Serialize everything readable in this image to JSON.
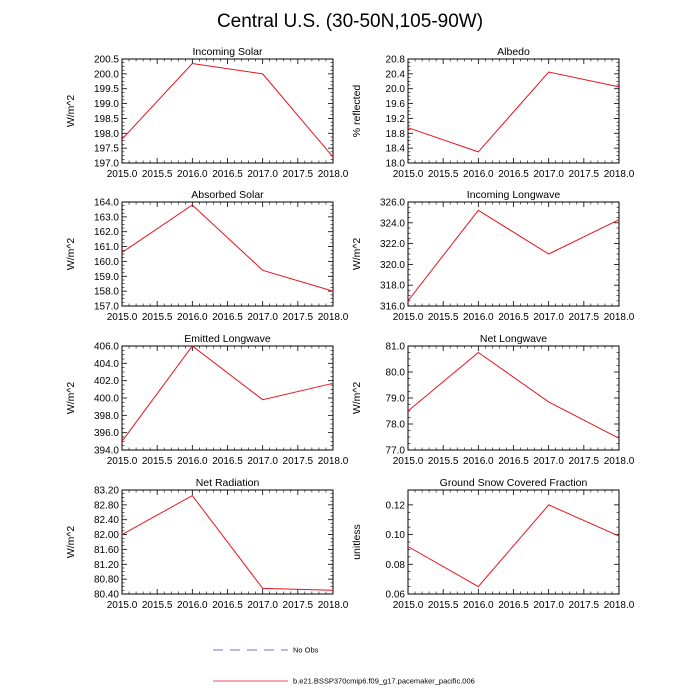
{
  "title": "Central U.S. (30-50N,105-90W)",
  "colors": {
    "model": "#e8141e",
    "obs": "#4a4aa8",
    "axis": "#000000"
  },
  "legend": {
    "obs_label": "No Obs",
    "model_label": "b.e21.BSSP370cmip6.f09_g17.pacemaker_pacific.006"
  },
  "chart_data": [
    {
      "type": "line",
      "title": "Incoming Solar",
      "ylabel": "W/m^2",
      "x": [
        2015.0,
        2016.0,
        2017.0,
        2018.0
      ],
      "y": [
        197.8,
        200.35,
        200.0,
        197.2
      ],
      "xlim": [
        2015.0,
        2018.0
      ],
      "ylim": [
        197.0,
        200.5
      ],
      "xticks": [
        2015.0,
        2015.5,
        2016.0,
        2016.5,
        2017.0,
        2017.5,
        2018.0
      ],
      "xtick_labels": [
        "2015.0",
        "2015.5",
        "2016.0",
        "2016.5",
        "2017.0",
        "2017.5",
        "2018.0"
      ],
      "yticks": [
        197.0,
        197.5,
        198.0,
        198.5,
        199.0,
        199.5,
        200.0,
        200.5
      ],
      "ytick_labels": [
        "197.0",
        "197.5",
        "198.0",
        "198.5",
        "199.0",
        "199.5",
        "200.0",
        "200.5"
      ]
    },
    {
      "type": "line",
      "title": "Albedo",
      "ylabel": "% reflected",
      "x": [
        2015.0,
        2016.0,
        2017.0,
        2018.0
      ],
      "y": [
        18.95,
        18.3,
        20.45,
        20.05
      ],
      "xlim": [
        2015.0,
        2018.0
      ],
      "ylim": [
        18.0,
        20.8
      ],
      "xticks": [
        2015.0,
        2015.5,
        2016.0,
        2016.5,
        2017.0,
        2017.5,
        2018.0
      ],
      "xtick_labels": [
        "2015.0",
        "2015.5",
        "2016.0",
        "2016.5",
        "2017.0",
        "2017.5",
        "2018.0"
      ],
      "yticks": [
        18.0,
        18.4,
        18.8,
        19.2,
        19.6,
        20.0,
        20.4,
        20.8
      ],
      "ytick_labels": [
        "18.0",
        "18.4",
        "18.8",
        "19.2",
        "19.6",
        "20.0",
        "20.4",
        "20.8"
      ]
    },
    {
      "type": "line",
      "title": "Absorbed Solar",
      "ylabel": "W/m^2",
      "x": [
        2015.0,
        2016.0,
        2017.0,
        2018.0
      ],
      "y": [
        160.6,
        163.8,
        159.4,
        158.0
      ],
      "xlim": [
        2015.0,
        2018.0
      ],
      "ylim": [
        157.0,
        164.0
      ],
      "xticks": [
        2015.0,
        2015.5,
        2016.0,
        2016.5,
        2017.0,
        2017.5,
        2018.0
      ],
      "xtick_labels": [
        "2015.0",
        "2015.5",
        "2016.0",
        "2016.5",
        "2017.0",
        "2017.5",
        "2018.0"
      ],
      "yticks": [
        157.0,
        158.0,
        159.0,
        160.0,
        161.0,
        162.0,
        163.0,
        164.0
      ],
      "ytick_labels": [
        "157.0",
        "158.0",
        "159.0",
        "160.0",
        "161.0",
        "162.0",
        "163.0",
        "164.0"
      ]
    },
    {
      "type": "line",
      "title": "Incoming Longwave",
      "ylabel": "W/m^2",
      "x": [
        2015.0,
        2016.0,
        2017.0,
        2018.0
      ],
      "y": [
        316.5,
        325.2,
        321.0,
        324.3
      ],
      "xlim": [
        2015.0,
        2018.0
      ],
      "ylim": [
        316.0,
        326.0
      ],
      "xticks": [
        2015.0,
        2015.5,
        2016.0,
        2016.5,
        2017.0,
        2017.5,
        2018.0
      ],
      "xtick_labels": [
        "2015.0",
        "2015.5",
        "2016.0",
        "2016.5",
        "2017.0",
        "2017.5",
        "2018.0"
      ],
      "yticks": [
        316.0,
        318.0,
        320.0,
        322.0,
        324.0,
        326.0
      ],
      "ytick_labels": [
        "316.0",
        "318.0",
        "320.0",
        "322.0",
        "324.0",
        "326.0"
      ]
    },
    {
      "type": "line",
      "title": "Emitted Longwave",
      "ylabel": "W/m^2",
      "x": [
        2015.0,
        2016.0,
        2017.0,
        2018.0
      ],
      "y": [
        395.0,
        406.0,
        399.8,
        401.7
      ],
      "xlim": [
        2015.0,
        2018.0
      ],
      "ylim": [
        394.0,
        406.0
      ],
      "xticks": [
        2015.0,
        2015.5,
        2016.0,
        2016.5,
        2017.0,
        2017.5,
        2018.0
      ],
      "xtick_labels": [
        "2015.0",
        "2015.5",
        "2016.0",
        "2016.5",
        "2017.0",
        "2017.5",
        "2018.0"
      ],
      "yticks": [
        394.0,
        396.0,
        398.0,
        400.0,
        402.0,
        404.0,
        406.0
      ],
      "ytick_labels": [
        "394.0",
        "396.0",
        "398.0",
        "400.0",
        "402.0",
        "404.0",
        "406.0"
      ]
    },
    {
      "type": "line",
      "title": "Net Longwave",
      "ylabel": "W/m^2",
      "x": [
        2015.0,
        2016.0,
        2017.0,
        2018.0
      ],
      "y": [
        78.5,
        80.75,
        78.85,
        77.45
      ],
      "xlim": [
        2015.0,
        2018.0
      ],
      "ylim": [
        77.0,
        81.0
      ],
      "xticks": [
        2015.0,
        2015.5,
        2016.0,
        2016.5,
        2017.0,
        2017.5,
        2018.0
      ],
      "xtick_labels": [
        "2015.0",
        "2015.5",
        "2016.0",
        "2016.5",
        "2017.0",
        "2017.5",
        "2018.0"
      ],
      "yticks": [
        77.0,
        78.0,
        79.0,
        80.0,
        81.0
      ],
      "ytick_labels": [
        "77.0",
        "78.0",
        "79.0",
        "80.0",
        "81.0"
      ]
    },
    {
      "type": "line",
      "title": "Net Radiation",
      "ylabel": "W/m^2",
      "x": [
        2015.0,
        2016.0,
        2017.0,
        2018.0
      ],
      "y": [
        82.0,
        83.05,
        80.55,
        80.5
      ],
      "xlim": [
        2015.0,
        2018.0
      ],
      "ylim": [
        80.4,
        83.2
      ],
      "xticks": [
        2015.0,
        2015.5,
        2016.0,
        2016.5,
        2017.0,
        2017.5,
        2018.0
      ],
      "xtick_labels": [
        "2015.0",
        "2015.5",
        "2016.0",
        "2016.5",
        "2017.0",
        "2017.5",
        "2018.0"
      ],
      "yticks": [
        80.4,
        80.8,
        81.2,
        81.6,
        82.0,
        82.4,
        82.8,
        83.2
      ],
      "ytick_labels": [
        "80.40",
        "80.80",
        "81.20",
        "81.60",
        "82.00",
        "82.40",
        "82.80",
        "83.20"
      ]
    },
    {
      "type": "line",
      "title": "Ground Snow Covered Fraction",
      "ylabel": "unitless",
      "x": [
        2015.0,
        2016.0,
        2017.0,
        2018.0
      ],
      "y": [
        0.092,
        0.065,
        0.12,
        0.099
      ],
      "xlim": [
        2015.0,
        2018.0
      ],
      "ylim": [
        0.06,
        0.13
      ],
      "xticks": [
        2015.0,
        2015.5,
        2016.0,
        2016.5,
        2017.0,
        2017.5,
        2018.0
      ],
      "xtick_labels": [
        "2015.0",
        "2015.5",
        "2016.0",
        "2016.5",
        "2017.0",
        "2017.5",
        "2018.0"
      ],
      "yticks": [
        0.06,
        0.08,
        0.1,
        0.12
      ],
      "ytick_labels": [
        "0.06",
        "0.08",
        "0.10",
        "0.12"
      ]
    }
  ]
}
